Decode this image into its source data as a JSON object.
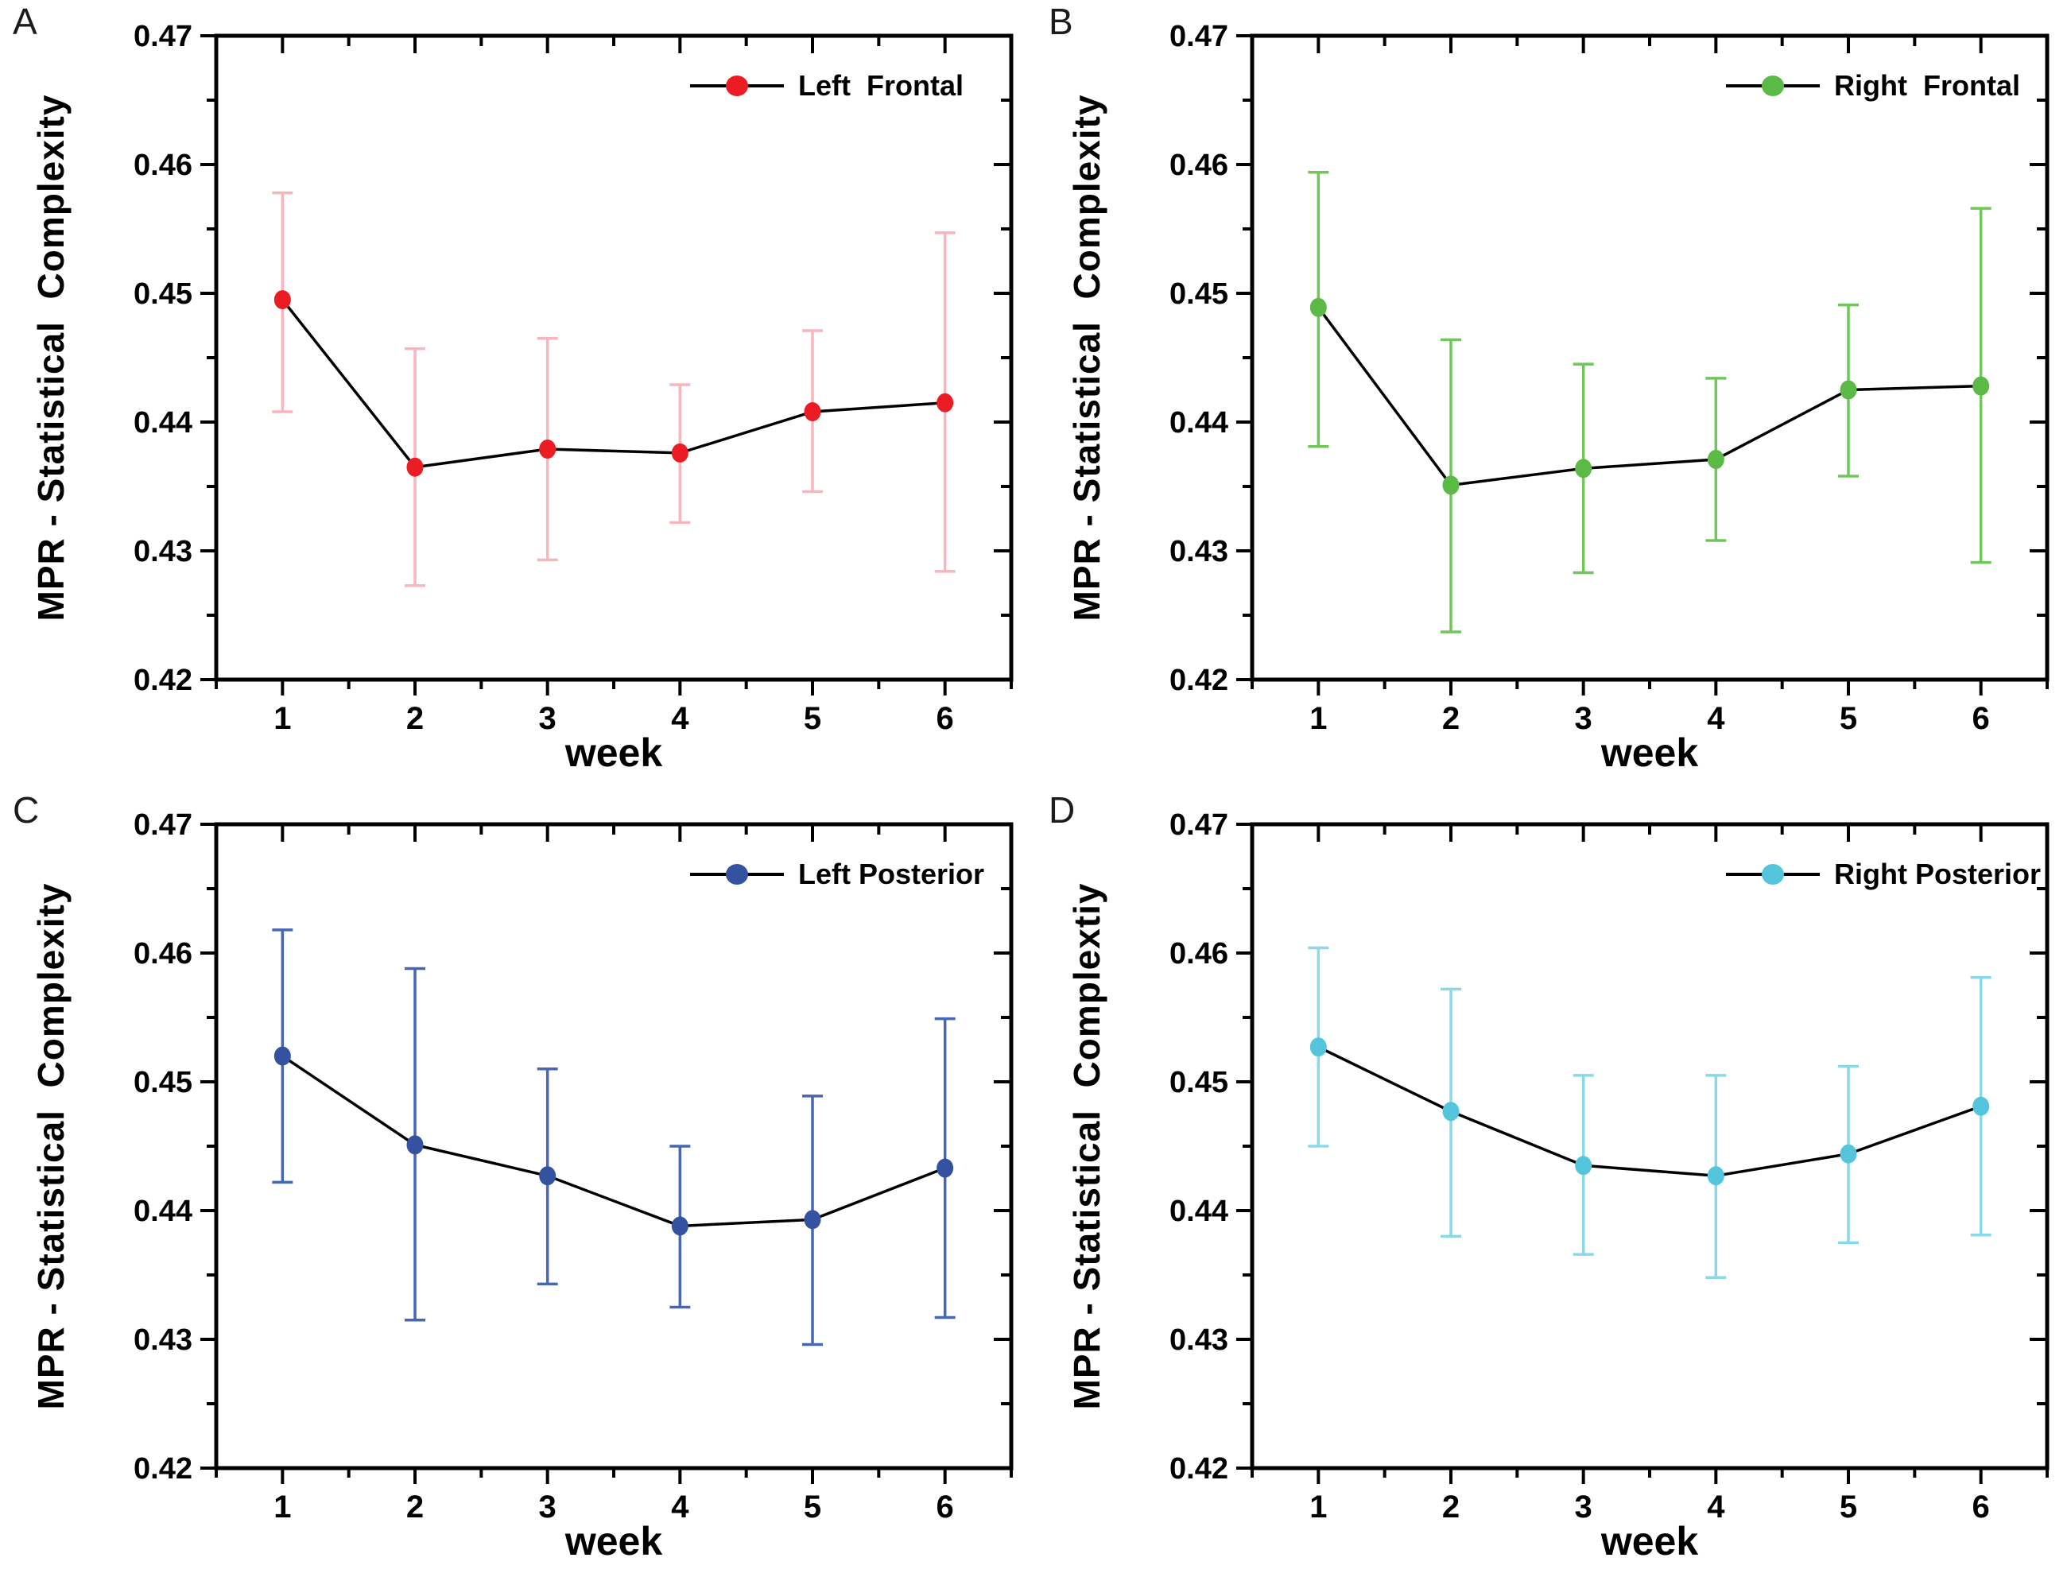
{
  "figure": {
    "background": "#ffffff",
    "axis_color": "#000000",
    "line_color": "#000000"
  },
  "chart_data": [
    {
      "type": "line",
      "panel_label": "A",
      "legend_label": "Left  Frontal",
      "legend_position": "top-right",
      "marker_color": "#EC1C24",
      "error_color": "#F6B6BC",
      "line_color": "#000000",
      "xlabel": "week",
      "ylabel": "MPR - Statistical  Complexity",
      "x": [
        1,
        2,
        3,
        4,
        5,
        6
      ],
      "y": [
        0.4495,
        0.4365,
        0.4379,
        0.4376,
        0.4408,
        0.4415
      ],
      "err_lo": [
        0.4408,
        0.4273,
        0.4293,
        0.4322,
        0.4346,
        0.4284
      ],
      "err_hi": [
        0.4578,
        0.4457,
        0.4465,
        0.4429,
        0.4471,
        0.4547
      ],
      "xlim": [
        0.5,
        6.5
      ],
      "ylim": [
        0.42,
        0.47
      ],
      "x_tick_values": [
        1,
        2,
        3,
        4,
        5,
        6
      ],
      "x_tick_labels": [
        "1",
        "2",
        "3",
        "4",
        "5",
        "6"
      ],
      "x_minor_ticks": [
        0.5,
        1.5,
        2.5,
        3.5,
        4.5,
        5.5,
        6.5
      ],
      "y_tick_values": [
        0.42,
        0.43,
        0.44,
        0.45,
        0.46,
        0.47
      ],
      "y_tick_labels": [
        "0.42",
        "0.43",
        "0.44",
        "0.45",
        "0.46",
        "0.47"
      ],
      "y_minor_ticks": [
        0.425,
        0.435,
        0.445,
        0.455,
        0.465
      ],
      "grid": false
    },
    {
      "type": "line",
      "panel_label": "B",
      "legend_label": "Right  Frontal",
      "legend_position": "top-right",
      "marker_color": "#5BBA46",
      "error_color": "#71C65B",
      "line_color": "#000000",
      "xlabel": "week",
      "ylabel": "MPR - Statistical  Complexity",
      "x": [
        1,
        2,
        3,
        4,
        5,
        6
      ],
      "y": [
        0.4489,
        0.4351,
        0.4364,
        0.4371,
        0.4425,
        0.4428
      ],
      "err_lo": [
        0.4381,
        0.4237,
        0.4283,
        0.4308,
        0.4358,
        0.4291
      ],
      "err_hi": [
        0.4594,
        0.4464,
        0.4445,
        0.4434,
        0.4491,
        0.4566
      ],
      "xlim": [
        0.5,
        6.5
      ],
      "ylim": [
        0.42,
        0.47
      ],
      "x_tick_values": [
        1,
        2,
        3,
        4,
        5,
        6
      ],
      "x_tick_labels": [
        "1",
        "2",
        "3",
        "4",
        "5",
        "6"
      ],
      "x_minor_ticks": [
        0.5,
        1.5,
        2.5,
        3.5,
        4.5,
        5.5,
        6.5
      ],
      "y_tick_values": [
        0.42,
        0.43,
        0.44,
        0.45,
        0.46,
        0.47
      ],
      "y_tick_labels": [
        "0.42",
        "0.43",
        "0.44",
        "0.45",
        "0.46",
        "0.47"
      ],
      "y_minor_ticks": [
        0.425,
        0.435,
        0.445,
        0.455,
        0.465
      ],
      "grid": false
    },
    {
      "type": "line",
      "panel_label": "C",
      "legend_label": "Left Posterior",
      "legend_position": "top-right",
      "marker_color": "#3452A0",
      "error_color": "#4767B2",
      "line_color": "#000000",
      "xlabel": "week",
      "ylabel": "MPR - Statistical  Complexity",
      "x": [
        1,
        2,
        3,
        4,
        5,
        6
      ],
      "y": [
        0.452,
        0.4451,
        0.4427,
        0.4388,
        0.4393,
        0.4433
      ],
      "err_lo": [
        0.4422,
        0.4315,
        0.4343,
        0.4325,
        0.4296,
        0.4317
      ],
      "err_hi": [
        0.4618,
        0.4588,
        0.451,
        0.445,
        0.4489,
        0.4549
      ],
      "xlim": [
        0.5,
        6.5
      ],
      "ylim": [
        0.42,
        0.47
      ],
      "x_tick_values": [
        1,
        2,
        3,
        4,
        5,
        6
      ],
      "x_tick_labels": [
        "1",
        "2",
        "3",
        "4",
        "5",
        "6"
      ],
      "x_minor_ticks": [
        0.5,
        1.5,
        2.5,
        3.5,
        4.5,
        5.5,
        6.5
      ],
      "y_tick_values": [
        0.42,
        0.43,
        0.44,
        0.45,
        0.46,
        0.47
      ],
      "y_tick_labels": [
        "0.42",
        "0.43",
        "0.44",
        "0.45",
        "0.46",
        "0.47"
      ],
      "y_minor_ticks": [
        0.425,
        0.435,
        0.445,
        0.455,
        0.465
      ],
      "grid": false
    },
    {
      "type": "line",
      "panel_label": "D",
      "legend_label": "Right Posterior",
      "legend_position": "top-right",
      "marker_color": "#55C5DC",
      "error_color": "#8BD8E9",
      "line_color": "#000000",
      "xlabel": "week",
      "ylabel": "MPR - Statistical  Complextiy",
      "x": [
        1,
        2,
        3,
        4,
        5,
        6
      ],
      "y": [
        0.4527,
        0.4477,
        0.4435,
        0.4427,
        0.4444,
        0.4481
      ],
      "err_lo": [
        0.445,
        0.438,
        0.4366,
        0.4348,
        0.4375,
        0.4381
      ],
      "err_hi": [
        0.4604,
        0.4572,
        0.4505,
        0.4505,
        0.4512,
        0.4581
      ],
      "xlim": [
        0.5,
        6.5
      ],
      "ylim": [
        0.42,
        0.47
      ],
      "x_tick_values": [
        1,
        2,
        3,
        4,
        5,
        6
      ],
      "x_tick_labels": [
        "1",
        "2",
        "3",
        "4",
        "5",
        "6"
      ],
      "x_minor_ticks": [
        0.5,
        1.5,
        2.5,
        3.5,
        4.5,
        5.5,
        6.5
      ],
      "y_tick_values": [
        0.42,
        0.43,
        0.44,
        0.45,
        0.46,
        0.47
      ],
      "y_tick_labels": [
        "0.42",
        "0.43",
        "0.44",
        "0.45",
        "0.46",
        "0.47"
      ],
      "y_minor_ticks": [
        0.425,
        0.435,
        0.445,
        0.455,
        0.465
      ],
      "grid": false
    }
  ]
}
